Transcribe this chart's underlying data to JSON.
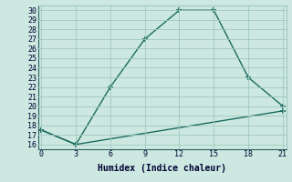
{
  "line1_x": [
    0,
    3,
    6,
    9,
    12,
    15,
    18,
    21
  ],
  "line1_y": [
    17.5,
    16,
    22,
    27,
    30,
    30,
    23,
    20
  ],
  "line2_x": [
    0,
    3,
    21
  ],
  "line2_y": [
    17.5,
    16,
    19.5
  ],
  "color": "#1a6b5e",
  "bg_color": "#cce8e0",
  "grid_color": "#a0c8c0",
  "xlabel": "Humidex (Indice chaleur)",
  "xlim": [
    0,
    21
  ],
  "ylim": [
    16,
    30
  ],
  "xticks": [
    0,
    3,
    6,
    9,
    12,
    15,
    18,
    21
  ],
  "yticks": [
    16,
    17,
    18,
    19,
    20,
    21,
    22,
    23,
    24,
    25,
    26,
    27,
    28,
    29,
    30
  ],
  "marker": "+",
  "markersize": 5,
  "linewidth": 1.0,
  "font_family": "monospace",
  "tick_fontsize": 6,
  "xlabel_fontsize": 7
}
